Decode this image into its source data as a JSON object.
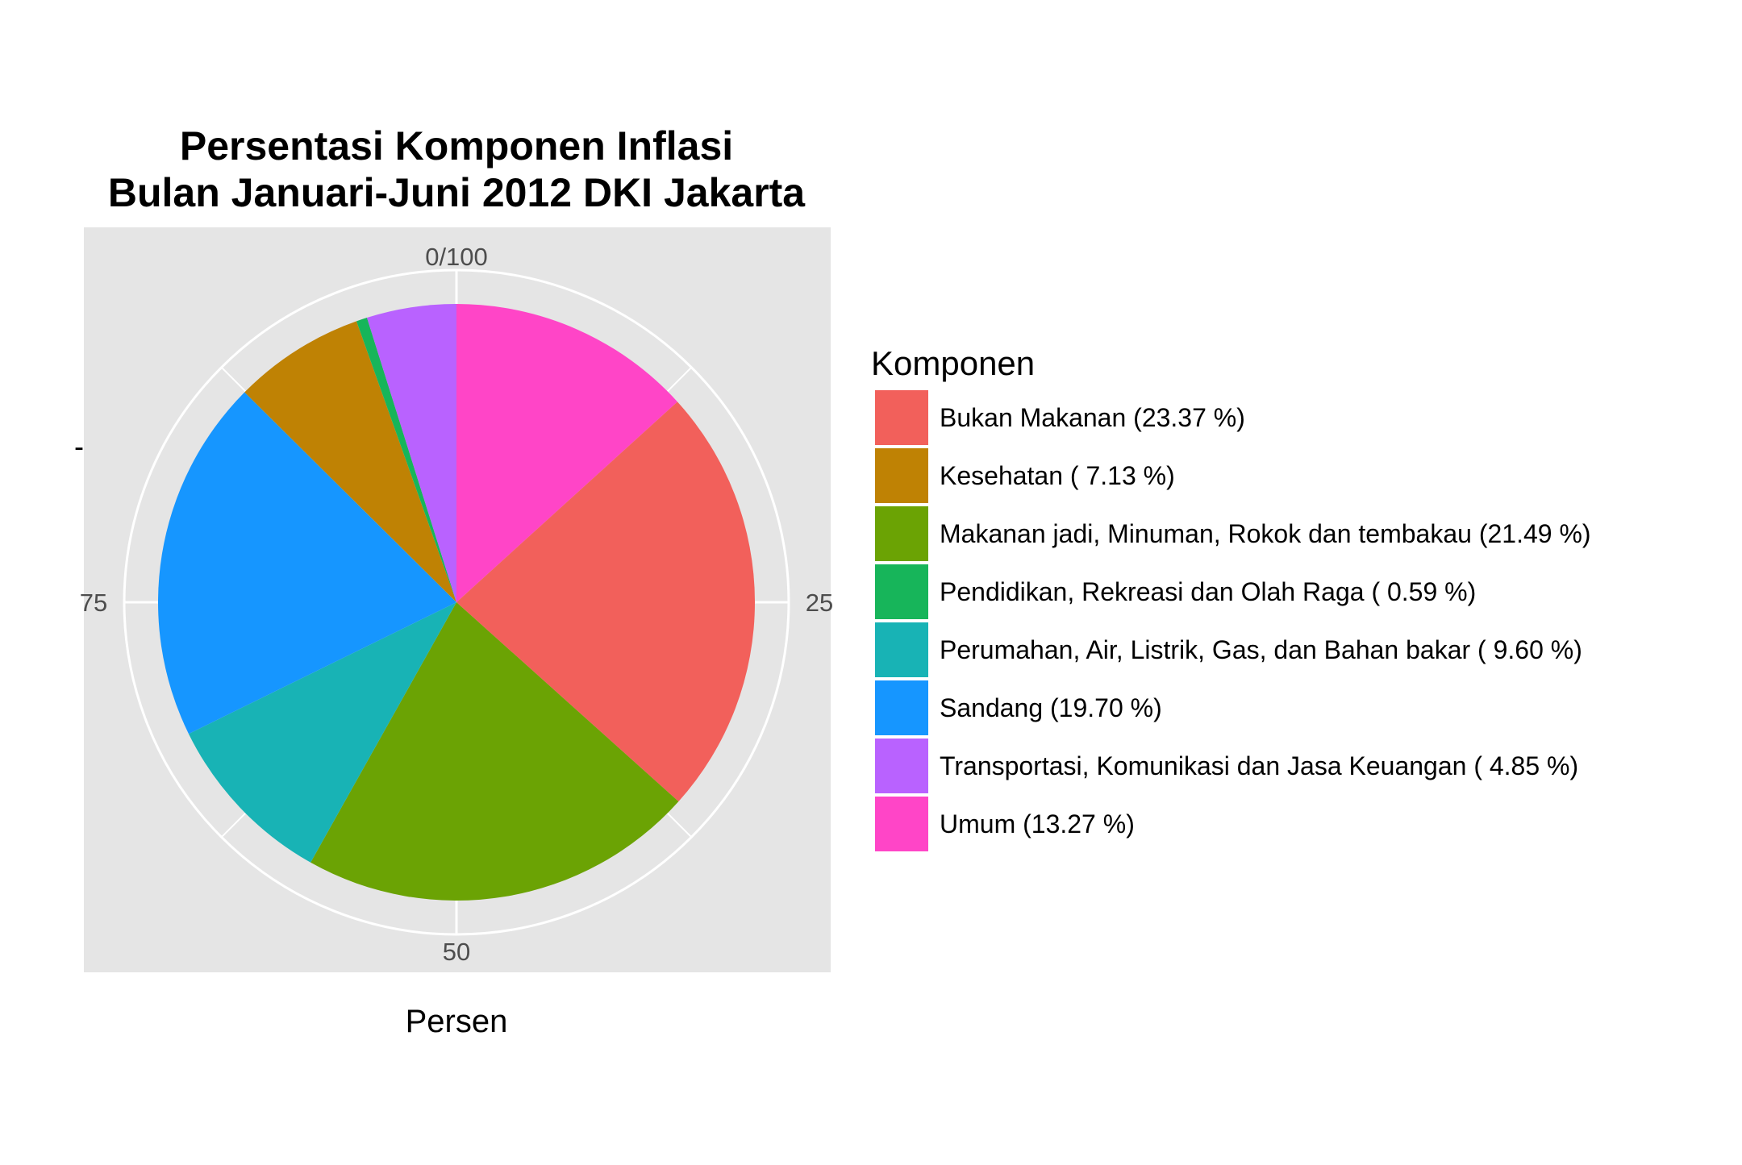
{
  "chart_data": {
    "type": "pie",
    "title": "Persentasi Komponen Inflasi\nBulan Januari-Juni 2012 DKI Jakarta",
    "title_lines": [
      "Persentasi Komponen Inflasi",
      "Bulan Januari-Juni 2012 DKI Jakarta"
    ],
    "xlabel": "Persen",
    "ylabel": "-",
    "theta_ticks": [
      {
        "value": 0,
        "label": "0/100"
      },
      {
        "value": 25,
        "label": "25"
      },
      {
        "value": 50,
        "label": "50"
      },
      {
        "value": 75,
        "label": "75"
      }
    ],
    "grid": true,
    "start_angle": "top",
    "direction": "clockwise",
    "legend": {
      "title": "Komponen",
      "position": "right"
    },
    "slices": [
      {
        "label": "Umum",
        "value": 13.27,
        "color": "#FF45C7",
        "legend_label": "Umum (13.27 %)"
      },
      {
        "label": "Bukan Makanan",
        "value": 23.37,
        "color": "#F2605B",
        "legend_label": "Bukan Makanan (23.37 %)"
      },
      {
        "label": "Makanan jadi, Minuman, Rokok dan tembakau",
        "value": 21.49,
        "color": "#6BA304",
        "legend_label": "Makanan jadi, Minuman, Rokok dan tembakau (21.49 %)"
      },
      {
        "label": "Perumahan, Air, Listrik, Gas, dan Bahan bakar",
        "value": 9.6,
        "color": "#18B3B5",
        "legend_label": "Perumahan, Air, Listrik, Gas, dan Bahan bakar ( 9.60 %)"
      },
      {
        "label": "Sandang",
        "value": 19.7,
        "color": "#1696FF",
        "legend_label": "Sandang (19.70 %)"
      },
      {
        "label": "Kesehatan",
        "value": 7.13,
        "color": "#BF8204",
        "legend_label": "Kesehatan ( 7.13 %)"
      },
      {
        "label": "Pendidikan, Rekreasi dan Olah Raga",
        "value": 0.59,
        "color": "#17B55A",
        "legend_label": "Pendidikan, Rekreasi dan Olah Raga ( 0.59 %)"
      },
      {
        "label": "Transportasi, Komunikasi dan Jasa Keuangan",
        "value": 4.85,
        "color": "#B962FF",
        "legend_label": "Transportasi, Komunikasi dan Jasa Keuangan ( 4.85 %)"
      }
    ],
    "legend_order": [
      "Bukan Makanan",
      "Kesehatan",
      "Makanan jadi, Minuman, Rokok dan tembakau",
      "Pendidikan, Rekreasi dan Olah Raga",
      "Perumahan, Air, Listrik, Gas, dan Bahan bakar",
      "Sandang",
      "Transportasi, Komunikasi dan Jasa Keuangan",
      "Umum"
    ],
    "panel_background": "#E5E5E5",
    "grid_color": "#FFFFFF"
  }
}
